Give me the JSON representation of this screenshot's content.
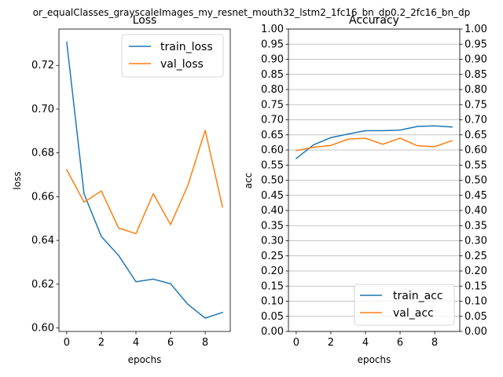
{
  "suptitle": "or_equalClasses_grayscaleImages_my_resnet_mouth32_lstm2_1fc16_bn_dp0.2_2fc16_bn_dp",
  "colors": {
    "train": "#1f77b4",
    "val": "#ff7f0e",
    "grid": "#b0b0b0"
  },
  "chart_data": [
    {
      "type": "line",
      "title": "Loss",
      "xlabel": "epochs",
      "ylabel": "loss",
      "x": [
        0,
        1,
        2,
        3,
        4,
        5,
        6,
        7,
        8,
        9
      ],
      "xlim": [
        -0.45,
        9.45
      ],
      "ylim": [
        0.5984,
        0.7366
      ],
      "xticks": [
        0,
        2,
        4,
        6,
        8
      ],
      "yticks": [
        0.6,
        0.62,
        0.64,
        0.66,
        0.68,
        0.7,
        0.72
      ],
      "ytick_labels": [
        "0.60",
        "0.62",
        "0.64",
        "0.66",
        "0.68",
        "0.70",
        "0.72"
      ],
      "grid": false,
      "legend_position": "upper right",
      "series": [
        {
          "name": "train_loss",
          "values": [
            0.7306,
            0.6613,
            0.6418,
            0.6331,
            0.6211,
            0.6223,
            0.6202,
            0.6108,
            0.6045,
            0.6071
          ]
        },
        {
          "name": "val_loss",
          "values": [
            0.6723,
            0.6575,
            0.6626,
            0.6456,
            0.6431,
            0.6614,
            0.6472,
            0.6652,
            0.6903,
            0.6553
          ]
        }
      ]
    },
    {
      "type": "line",
      "title": "Accuracy",
      "xlabel": "epochs",
      "ylabel": "acc",
      "x": [
        0,
        1,
        2,
        3,
        4,
        5,
        6,
        7,
        8,
        9
      ],
      "xlim": [
        -0.45,
        9.45
      ],
      "ylim": [
        0,
        1
      ],
      "xticks": [
        0,
        2,
        4,
        6,
        8
      ],
      "yticks": [
        0.0,
        0.05,
        0.1,
        0.15,
        0.2,
        0.25,
        0.3,
        0.35,
        0.4,
        0.45,
        0.5,
        0.55,
        0.6,
        0.65,
        0.7,
        0.75,
        0.8,
        0.85,
        0.9,
        0.95,
        1.0
      ],
      "ytick_labels": [
        "0.00",
        "0.05",
        "0.10",
        "0.15",
        "0.20",
        "0.25",
        "0.30",
        "0.35",
        "0.40",
        "0.45",
        "0.50",
        "0.55",
        "0.60",
        "0.65",
        "0.70",
        "0.75",
        "0.80",
        "0.85",
        "0.90",
        "0.95",
        "1.00"
      ],
      "grid": true,
      "right_axis_labels": true,
      "legend_position": "lower right",
      "series": [
        {
          "name": "train_acc",
          "values": [
            0.572,
            0.617,
            0.641,
            0.653,
            0.664,
            0.664,
            0.666,
            0.678,
            0.68,
            0.676
          ]
        },
        {
          "name": "val_acc",
          "values": [
            0.598,
            0.609,
            0.615,
            0.636,
            0.639,
            0.619,
            0.639,
            0.614,
            0.611,
            0.631
          ]
        }
      ]
    }
  ]
}
